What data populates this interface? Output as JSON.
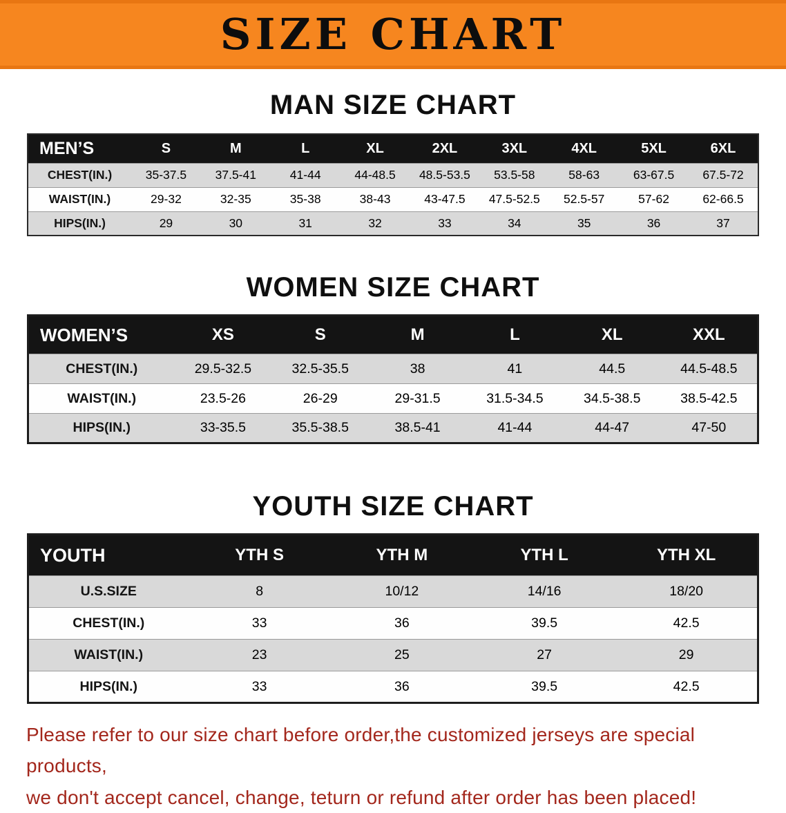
{
  "banner": {
    "title": "SIZE CHART"
  },
  "colors": {
    "banner_orange": "#f6861f",
    "banner_edge": "#e87612",
    "table_header_black": "#141414",
    "row_gray": "#d9d9d9",
    "disclaimer_red": "#a3271c"
  },
  "sections": [
    {
      "key": "men",
      "heading": "MAN SIZE CHART",
      "table": {
        "label": "MEN’S",
        "columns": [
          "S",
          "M",
          "L",
          "XL",
          "2XL",
          "3XL",
          "4XL",
          "5XL",
          "6XL"
        ],
        "rows": [
          {
            "label": "CHEST(IN.)",
            "values": [
              "35-37.5",
              "37.5-41",
              "41-44",
              "44-48.5",
              "48.5-53.5",
              "53.5-58",
              "58-63",
              "63-67.5",
              "67.5-72"
            ]
          },
          {
            "label": "WAIST(IN.)",
            "values": [
              "29-32",
              "32-35",
              "35-38",
              "38-43",
              "43-47.5",
              "47.5-52.5",
              "52.5-57",
              "57-62",
              "62-66.5"
            ]
          },
          {
            "label": "HIPS(IN.)",
            "values": [
              "29",
              "30",
              "31",
              "32",
              "33",
              "34",
              "35",
              "36",
              "37"
            ]
          }
        ]
      }
    },
    {
      "key": "women",
      "heading": "WOMEN SIZE CHART",
      "table": {
        "label": "WOMEN’S",
        "columns": [
          "XS",
          "S",
          "M",
          "L",
          "XL",
          "XXL"
        ],
        "rows": [
          {
            "label": "CHEST(IN.)",
            "values": [
              "29.5-32.5",
              "32.5-35.5",
              "38",
              "41",
              "44.5",
              "44.5-48.5"
            ]
          },
          {
            "label": "WAIST(IN.)",
            "values": [
              "23.5-26",
              "26-29",
              "29-31.5",
              "31.5-34.5",
              "34.5-38.5",
              "38.5-42.5"
            ]
          },
          {
            "label": "HIPS(IN.)",
            "values": [
              "33-35.5",
              "35.5-38.5",
              "38.5-41",
              "41-44",
              "44-47",
              "47-50"
            ]
          }
        ]
      }
    },
    {
      "key": "youth",
      "heading": "YOUTH SIZE CHART",
      "table": {
        "label": "YOUTH",
        "columns": [
          "YTH S",
          "YTH M",
          "YTH L",
          "YTH XL"
        ],
        "rows": [
          {
            "label": "U.S.SIZE",
            "values": [
              "8",
              "10/12",
              "14/16",
              "18/20"
            ]
          },
          {
            "label": "CHEST(IN.)",
            "values": [
              "33",
              "36",
              "39.5",
              "42.5"
            ]
          },
          {
            "label": "WAIST(IN.)",
            "values": [
              "23",
              "25",
              "27",
              "29"
            ]
          },
          {
            "label": "HIPS(IN.)",
            "values": [
              "33",
              "36",
              "39.5",
              "42.5"
            ]
          }
        ]
      }
    }
  ],
  "disclaimer": {
    "line1": "Please refer to our size chart before order,the customized jerseys are special products,",
    "line2": "we don't accept cancel, change, teturn or refund after order has been placed!"
  }
}
